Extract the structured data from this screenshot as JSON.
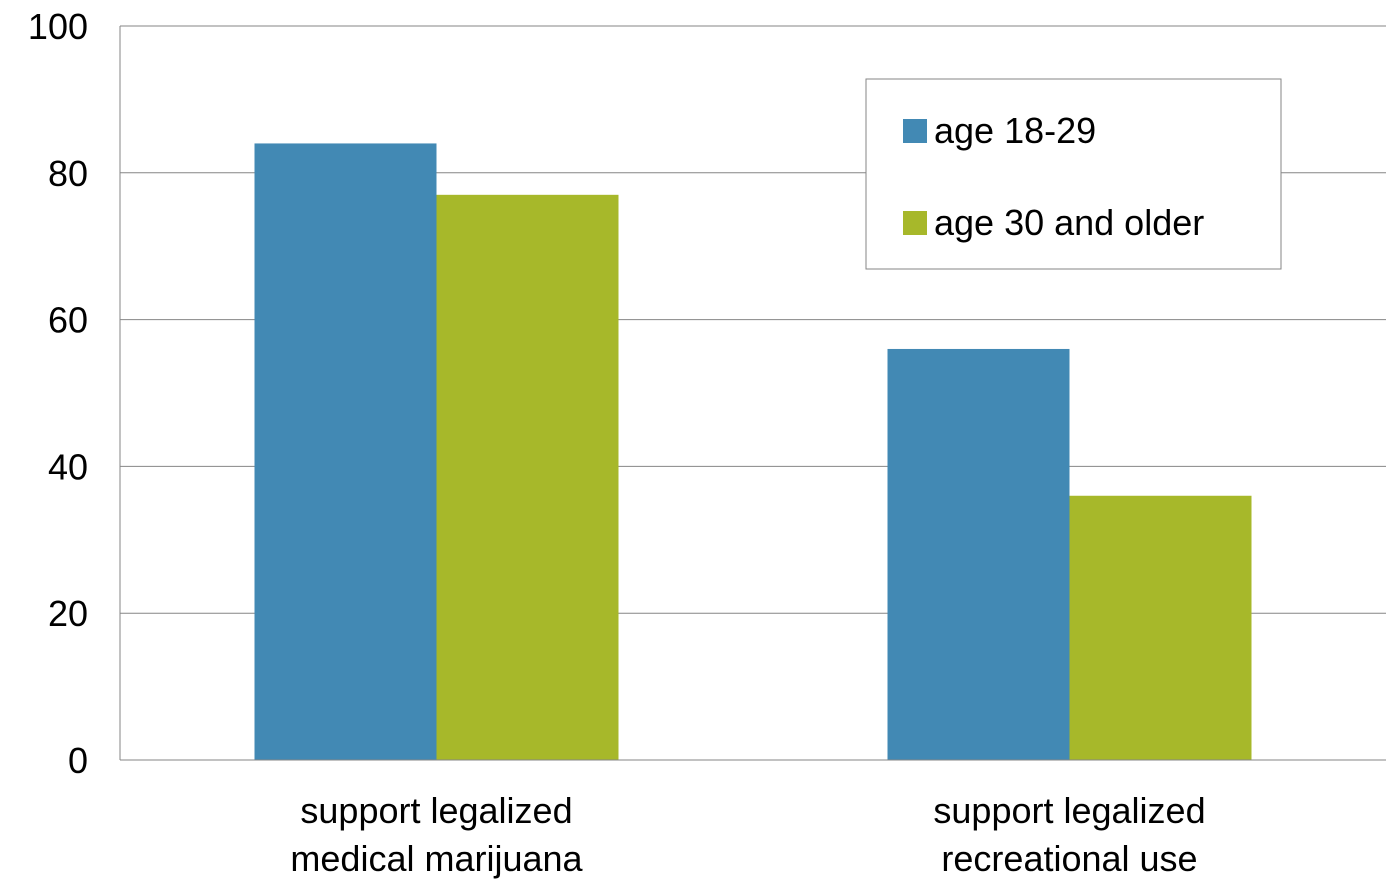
{
  "chart_data": {
    "type": "bar",
    "title": "",
    "xlabel": "",
    "ylabel": "",
    "ylim": [
      0,
      100
    ],
    "yticks": [
      0,
      20,
      40,
      60,
      80,
      100
    ],
    "grid": true,
    "legend_position": "top-right",
    "categories": [
      [
        "support legalized",
        "medical marijuana"
      ],
      [
        "support legalized",
        "recreational use"
      ]
    ],
    "series": [
      {
        "name": "age 18-29",
        "values": [
          84,
          56
        ],
        "color": "#4289b4"
      },
      {
        "name": "age 30 and older",
        "values": [
          77,
          36
        ],
        "color": "#a7b82a"
      }
    ]
  }
}
